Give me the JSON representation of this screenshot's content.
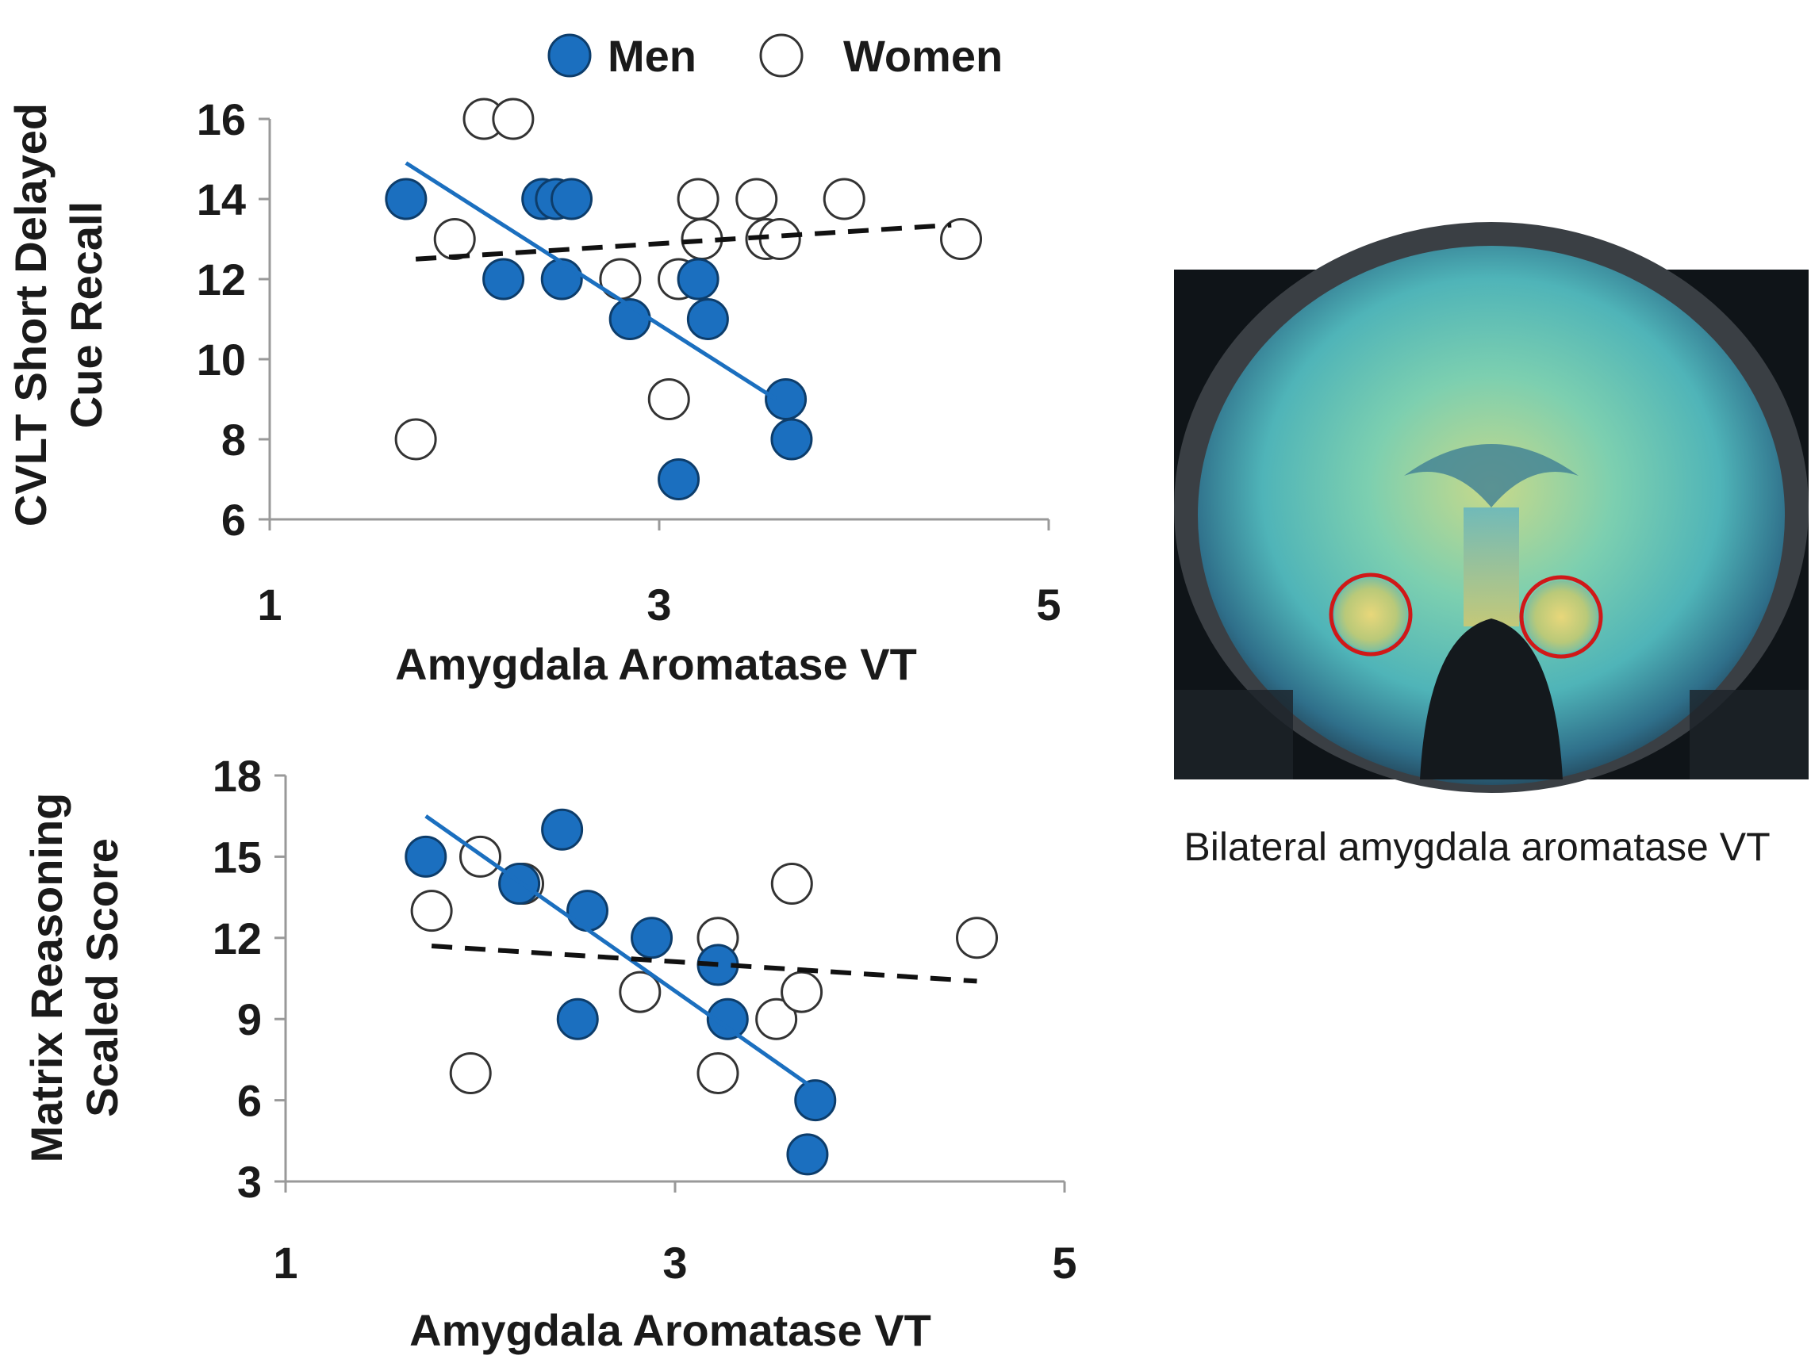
{
  "legend": {
    "items": [
      {
        "label": "Men",
        "fill": "#1b6fbf",
        "stroke": "#0d3d6b"
      },
      {
        "label": "Women",
        "fill": "#ffffff",
        "stroke": "#333333"
      }
    ]
  },
  "brain_image": {
    "caption": "Bilateral amygdala aromatase VT",
    "roi_color": "#d01818"
  },
  "chart_data": [
    {
      "type": "scatter",
      "title": "",
      "xlabel": "Amygdala Aromatase VT",
      "ylabel": [
        "CVLT Short Delayed",
        "Cue Recall"
      ],
      "xlim": [
        1,
        5
      ],
      "ylim": [
        6,
        16
      ],
      "xticks": [
        1,
        3,
        5
      ],
      "yticks": [
        6,
        8,
        10,
        12,
        14,
        16
      ],
      "series": [
        {
          "name": "Men",
          "points": [
            [
              1.7,
              14
            ],
            [
              2.2,
              12
            ],
            [
              2.4,
              14
            ],
            [
              2.47,
              14
            ],
            [
              2.55,
              14
            ],
            [
              2.5,
              12
            ],
            [
              2.85,
              11
            ],
            [
              3.2,
              12
            ],
            [
              3.25,
              11
            ],
            [
              3.65,
              9
            ],
            [
              3.68,
              8
            ],
            [
              3.1,
              7
            ]
          ],
          "fit": [
            [
              1.7,
              14.9
            ],
            [
              3.6,
              9.0
            ]
          ]
        },
        {
          "name": "Women",
          "points": [
            [
              1.75,
              8
            ],
            [
              1.95,
              13
            ],
            [
              2.1,
              16
            ],
            [
              2.25,
              16
            ],
            [
              2.8,
              12
            ],
            [
              3.05,
              9
            ],
            [
              3.1,
              12
            ],
            [
              3.2,
              14
            ],
            [
              3.22,
              13
            ],
            [
              3.5,
              14
            ],
            [
              3.55,
              13
            ],
            [
              3.62,
              13
            ],
            [
              3.95,
              14
            ],
            [
              4.55,
              13
            ]
          ],
          "fit": [
            [
              1.75,
              12.5
            ],
            [
              4.5,
              13.35
            ]
          ]
        }
      ]
    },
    {
      "type": "scatter",
      "title": "",
      "xlabel": "Amygdala Aromatase VT",
      "ylabel": [
        "Matrix Reasoning",
        "Scaled Score"
      ],
      "xlim": [
        1,
        5
      ],
      "ylim": [
        3,
        18
      ],
      "xticks": [
        1,
        3,
        5
      ],
      "yticks": [
        3,
        6,
        9,
        12,
        15,
        18
      ],
      "series": [
        {
          "name": "Men",
          "points": [
            [
              1.72,
              15
            ],
            [
              2.2,
              14
            ],
            [
              2.42,
              16
            ],
            [
              2.55,
              13
            ],
            [
              2.5,
              9
            ],
            [
              2.88,
              12
            ],
            [
              3.22,
              11
            ],
            [
              3.27,
              9
            ],
            [
              3.72,
              6
            ],
            [
              3.68,
              4
            ]
          ],
          "fit": [
            [
              1.72,
              16.5
            ],
            [
              3.7,
              6.5
            ]
          ]
        },
        {
          "name": "Women",
          "points": [
            [
              1.75,
              13
            ],
            [
              1.95,
              7
            ],
            [
              2.0,
              15
            ],
            [
              2.22,
              14
            ],
            [
              2.82,
              10
            ],
            [
              3.22,
              12
            ],
            [
              3.22,
              7
            ],
            [
              3.52,
              9
            ],
            [
              3.6,
              14
            ],
            [
              3.65,
              10
            ],
            [
              4.55,
              12
            ]
          ],
          "fit": [
            [
              1.75,
              11.7
            ],
            [
              4.55,
              10.4
            ]
          ]
        }
      ]
    }
  ]
}
